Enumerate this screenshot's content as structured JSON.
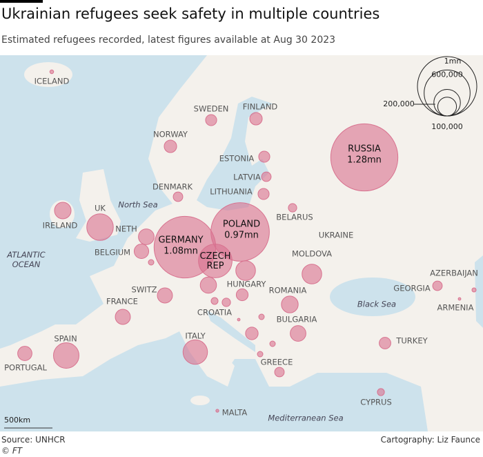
{
  "header": {
    "title": "Ukrainian refugees seek safety in multiple countries",
    "subtitle": "Estimated refugees recorded, latest figures available at Aug 30 2023"
  },
  "map": {
    "bubble_color": "#d8728f",
    "legend": {
      "sizes": [
        {
          "value": 1000000,
          "label": "1mn"
        },
        {
          "value": 600000,
          "label": "600,000"
        },
        {
          "value": 200000,
          "label": "200,000"
        },
        {
          "value": 100000,
          "label": "100,000"
        }
      ]
    },
    "countries": [
      {
        "name": "RUSSIA",
        "value": 1280000,
        "value_label": "1.28mn"
      },
      {
        "name": "GERMANY",
        "value": 1080000,
        "value_label": "1.08mn"
      },
      {
        "name": "POLAND",
        "value": 970000,
        "value_label": "0.97mn"
      },
      {
        "name": "CZECH\nREP",
        "value": 320000
      },
      {
        "name": "UK",
        "value": 200000
      },
      {
        "name": "SPAIN",
        "value": 185000
      },
      {
        "name": "ITALY",
        "value": 170000
      },
      {
        "name": "MOLDOVA",
        "value": 110000
      },
      {
        "name": null,
        "value": 110000
      },
      {
        "name": "NETH",
        "value": 70000
      },
      {
        "name": "IRELAND",
        "value": 78000
      },
      {
        "name": "ROMANIA",
        "value": 80000
      },
      {
        "name": "BULGARIA",
        "value": 70000
      },
      {
        "name": null,
        "value": 75000
      },
      {
        "name": "SWITZ",
        "value": 65000
      },
      {
        "name": "FRANCE",
        "value": 65000
      },
      {
        "name": "BELGIUM",
        "value": 60000
      },
      {
        "name": "PORTUGAL",
        "value": 58000
      },
      {
        "name": "FINLAND",
        "value": 44000
      },
      {
        "name": "NORWAY",
        "value": 44000
      },
      {
        "name": "HUNGARY",
        "value": 40000
      },
      {
        "name": null,
        "value": 45000
      },
      {
        "name": "ESTONIA",
        "value": 35000
      },
      {
        "name": "SWEDEN",
        "value": 35000
      },
      {
        "name": "LITHUANIA",
        "value": 35000
      },
      {
        "name": "TURKEY",
        "value": 38000
      },
      {
        "name": "DENMARK",
        "value": 26000
      },
      {
        "name": "LATVIA",
        "value": 26000
      },
      {
        "name": "GREECE",
        "value": 26000
      },
      {
        "name": "GEORGIA",
        "value": 26000
      },
      {
        "name": "BELARUS",
        "value": 20000
      },
      {
        "name": "CROATIA",
        "value": 13500
      },
      {
        "name": null,
        "value": 20000
      },
      {
        "name": "CYPRUS",
        "value": 14000
      },
      {
        "name": null,
        "value": 8600
      },
      {
        "name": null,
        "value": 8600
      },
      {
        "name": null,
        "value": 8600
      },
      {
        "name": null,
        "value": 8600
      },
      {
        "name": "ICELAND",
        "value": 4000
      },
      {
        "name": "AZERBAIJAN",
        "value": 5000
      },
      {
        "name": "ARMENIA",
        "value": 2000
      },
      {
        "name": "MALTA",
        "value": 2500
      },
      {
        "name": null,
        "value": 2000
      }
    ],
    "places": [
      "North Sea",
      "ATLANTIC\nOCEAN",
      "Black Sea",
      "Mediterranean Sea",
      "UKRAINE"
    ],
    "scale_bar": "500km"
  },
  "footer": {
    "source": "Source: UNHCR",
    "copyright": "© FT",
    "credit": "Cartography: Liz Faunce"
  }
}
